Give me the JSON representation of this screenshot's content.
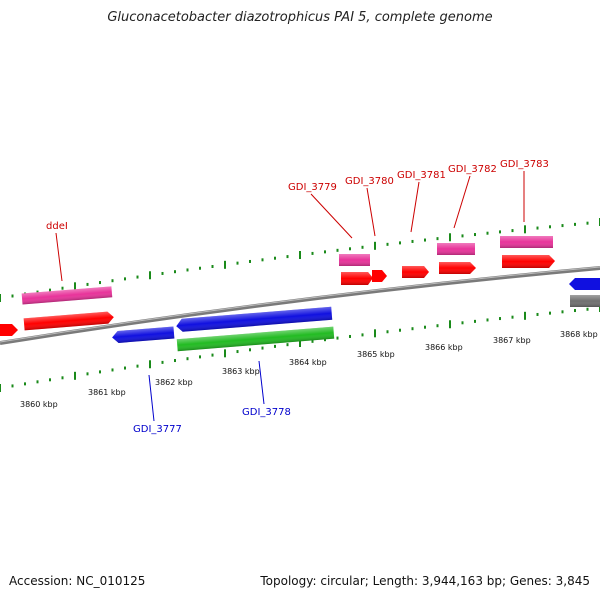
{
  "title": "Gluconacetobacter diazotrophicus PAI 5, complete genome",
  "footer": {
    "accession": "Accession: NC_010125",
    "summary": "Topology: circular; Length: 3,944,163 bp; Genes: 3,845"
  },
  "colors": {
    "background": "#ffffff",
    "backbone": "#808080",
    "tick": "#1a8a1a",
    "label_forward": "#cc0000",
    "label_reverse": "#0000cc",
    "gene_red": "#ff0000",
    "gene_pink": "#e8339a",
    "gene_blue": "#1010e0",
    "gene_green": "#22bb22",
    "gene_gray": "#707070"
  },
  "scale": {
    "ticks": [
      {
        "label": "3860 kbp"
      },
      {
        "label": "3861 kbp"
      },
      {
        "label": "3862 kbp"
      },
      {
        "label": "3863 kbp"
      },
      {
        "label": "3864 kbp"
      },
      {
        "label": "3865 kbp"
      },
      {
        "label": "3866 kbp"
      },
      {
        "label": "3867 kbp"
      },
      {
        "label": "3868 kbp"
      }
    ]
  },
  "gene_labels": {
    "forward": [
      "ddeI",
      "GDI_3779",
      "GDI_3780",
      "GDI_3781",
      "GDI_3782",
      "GDI_3783"
    ],
    "reverse": [
      "GDI_3777",
      "GDI_3778"
    ]
  }
}
